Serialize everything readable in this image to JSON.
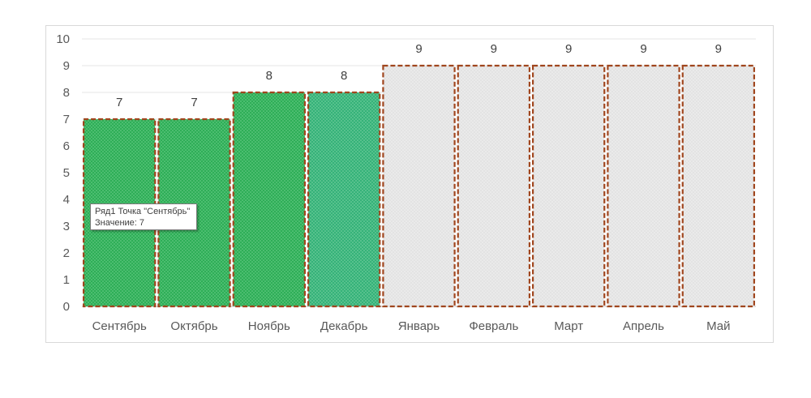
{
  "chart_data": {
    "type": "bar",
    "categories": [
      "Сентябрь",
      "Октябрь",
      "Ноябрь",
      "Декабрь",
      "Январь",
      "Февраль",
      "Март",
      "Апрель",
      "Май"
    ],
    "values": [
      7,
      7,
      8,
      8,
      9,
      9,
      9,
      9,
      9
    ],
    "ylim": [
      0,
      10
    ],
    "yticks": [
      0,
      1,
      2,
      3,
      4,
      5,
      6,
      7,
      8,
      9,
      10
    ],
    "grid": true,
    "legend": "none",
    "bar_fill_colors": [
      "#2eae57",
      "#2eae57",
      "#2eae57",
      "#35b279",
      "#e3e3e3",
      "#e3e3e3",
      "#e3e3e3",
      "#e3e3e3",
      "#e3e3e3"
    ],
    "bar_border_color": "#a0461e",
    "tooltip": {
      "line1": "Ряд1 Точка \"Сентябрь\"",
      "line2": "Значение: 7"
    }
  }
}
